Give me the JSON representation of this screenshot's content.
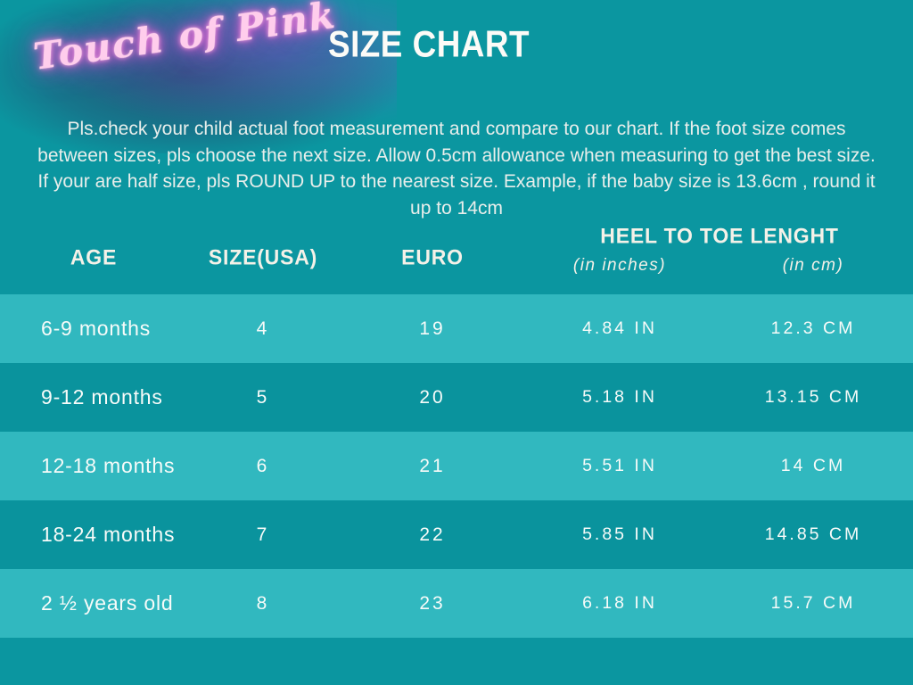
{
  "brand": {
    "logo_text": "Touch of Pink"
  },
  "header": {
    "title": "SIZE CHART"
  },
  "intro": {
    "lines": [
      "Pls.check your child actual foot measurement and compare to our chart. If the foot size comes",
      "between sizes, pls choose the next size. Allow 0.5cm allowance when measuring to get the best size.",
      "If your are half size, pls ROUND UP to the nearest size.  Example, if the baby size is 13.6cm , round it",
      "up to 14cm"
    ]
  },
  "table": {
    "columns": {
      "age": "AGE",
      "size_usa": "SIZE(USA)",
      "euro": "EURO",
      "heel_to_toe": "HEEL TO TOE LENGHT",
      "in_inches": "(in inches)",
      "in_cm": "(in cm)"
    },
    "rows": [
      {
        "age": "6-9 months",
        "size_usa": "4",
        "euro": "19",
        "inches": "4.84 IN",
        "cm": "12.3 CM"
      },
      {
        "age": "9-12 months",
        "size_usa": "5",
        "euro": "20",
        "inches": "5.18 IN",
        "cm": "13.15 CM"
      },
      {
        "age": "12-18 months",
        "size_usa": "6",
        "euro": "21",
        "inches": "5.51 IN",
        "cm": "14 CM"
      },
      {
        "age": "18-24 months",
        "size_usa": "7",
        "euro": "22",
        "inches": "5.85 IN",
        "cm": "14.85 CM"
      },
      {
        "age": "2 ½ years old",
        "size_usa": "8",
        "euro": "23",
        "inches": "6.18 IN",
        "cm": "15.7 CM"
      }
    ]
  },
  "chart_data": {
    "type": "table",
    "title": "SIZE CHART",
    "columns": [
      "AGE",
      "SIZE(USA)",
      "EURO",
      "HEEL TO TOE LENGHT (in inches)",
      "HEEL TO TOE LENGHT (in cm)"
    ],
    "rows": [
      [
        "6-9 months",
        "4",
        "19",
        "4.84 IN",
        "12.3 CM"
      ],
      [
        "9-12 months",
        "5",
        "20",
        "5.18 IN",
        "13.15 CM"
      ],
      [
        "12-18 months",
        "6",
        "21",
        "5.51 IN",
        "14 CM"
      ],
      [
        "18-24 months",
        "7",
        "22",
        "5.85 IN",
        "14.85 CM"
      ],
      [
        "2 ½ years old",
        "8",
        "23",
        "6.18 IN",
        "15.7 CM"
      ]
    ]
  },
  "colors": {
    "background": "#0b96a0",
    "row_light": "#31b8bf",
    "row_dark": "#0a939d",
    "title_text": "#fcfbf7",
    "body_text": "#e8eeeb",
    "header_text": "#f4f1e8",
    "row_text": "#f7fbf9",
    "logo_pink": "#f9a0df",
    "logo_backdrop": "#2c3462"
  }
}
